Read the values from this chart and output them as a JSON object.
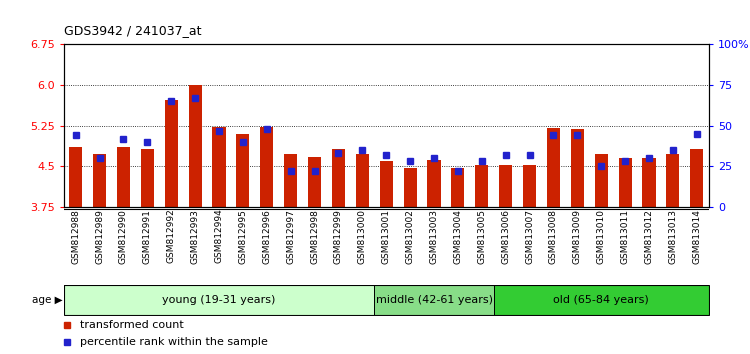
{
  "title": "GDS3942 / 241037_at",
  "categories": [
    "GSM812988",
    "GSM812989",
    "GSM812990",
    "GSM812991",
    "GSM812992",
    "GSM812993",
    "GSM812994",
    "GSM812995",
    "GSM812996",
    "GSM812997",
    "GSM812998",
    "GSM812999",
    "GSM813000",
    "GSM813001",
    "GSM813002",
    "GSM813003",
    "GSM813004",
    "GSM813005",
    "GSM813006",
    "GSM813007",
    "GSM813008",
    "GSM813009",
    "GSM813010",
    "GSM813011",
    "GSM813012",
    "GSM813013",
    "GSM813014"
  ],
  "red_values": [
    4.85,
    4.72,
    4.85,
    4.82,
    5.72,
    6.0,
    5.22,
    5.1,
    5.22,
    4.72,
    4.68,
    4.82,
    4.72,
    4.6,
    4.47,
    4.62,
    4.47,
    4.52,
    4.52,
    4.52,
    5.2,
    5.18,
    4.72,
    4.65,
    4.65,
    4.72,
    4.82
  ],
  "blue_values_pct": [
    44,
    30,
    42,
    40,
    65,
    67,
    47,
    40,
    48,
    22,
    22,
    33,
    35,
    32,
    28,
    30,
    22,
    28,
    32,
    32,
    44,
    44,
    25,
    28,
    30,
    35,
    45
  ],
  "ymin": 3.75,
  "ymax": 6.75,
  "yticks": [
    3.75,
    4.5,
    5.25,
    6.0,
    6.75
  ],
  "right_yticks_pct": [
    0,
    25,
    50,
    75,
    100
  ],
  "group_spans": [
    {
      "label": "young (19-31 years)",
      "start": 0,
      "end": 13,
      "color": "#ccffcc"
    },
    {
      "label": "middle (42-61 years)",
      "start": 13,
      "end": 18,
      "color": "#88dd88"
    },
    {
      "label": "old (65-84 years)",
      "start": 18,
      "end": 27,
      "color": "#33cc33"
    }
  ],
  "bar_color": "#cc2200",
  "dot_color": "#2222cc",
  "background_color": "#ffffff",
  "plot_bg": "#ffffff",
  "age_label": "age",
  "legend_red": "transformed count",
  "legend_blue": "percentile rank within the sample"
}
